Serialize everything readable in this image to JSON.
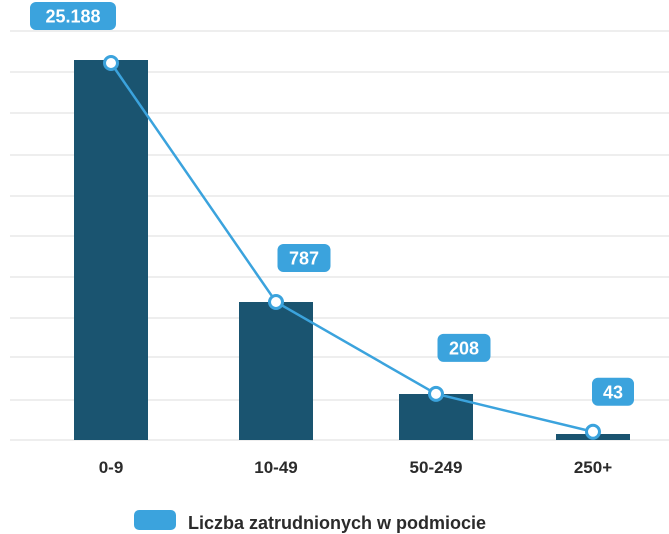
{
  "chart_data": {
    "type": "bar",
    "categories": [
      "0-9",
      "10-49",
      "50-249",
      "250+"
    ],
    "series": [
      {
        "name": "Liczba zatrudnionych w podmiocie",
        "bar_values": [
          25188,
          787,
          208,
          43
        ],
        "data_labels": [
          "25.188",
          "787",
          "208",
          "43"
        ],
        "line_display_level": [
          0.915,
          0.335,
          0.112,
          0.02
        ]
      }
    ],
    "grid": true,
    "legend_position": "bottom",
    "colors": {
      "bar": "#1a5470",
      "line": "#3ba3dd",
      "label_bg": "#3ba3dd",
      "grid": "#e3e3e3"
    }
  }
}
